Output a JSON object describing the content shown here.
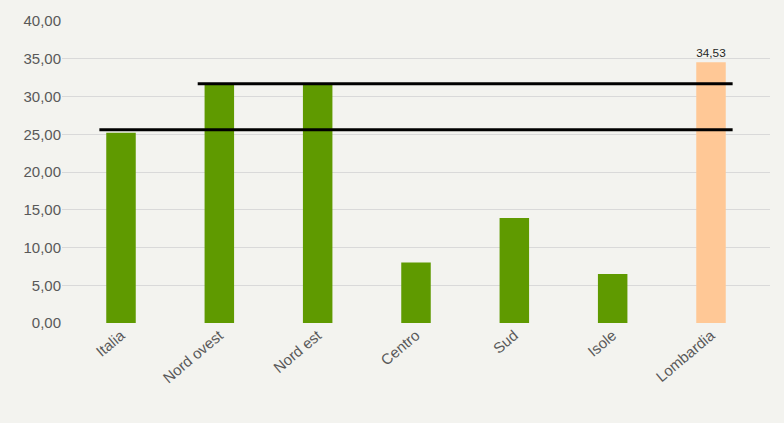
{
  "chart_data": {
    "type": "bar",
    "categories": [
      "Italia",
      "Nord ovest",
      "Nord est",
      "Centro",
      "Sud",
      "Isole",
      "Lombardia"
    ],
    "values": [
      25.2,
      31.7,
      31.7,
      8.0,
      13.9,
      6.5,
      34.53
    ],
    "value_labels": [
      null,
      null,
      null,
      null,
      null,
      null,
      "34,53"
    ],
    "data_labels": true,
    "colors": [
      "#5f9a00",
      "#5f9a00",
      "#5f9a00",
      "#5f9a00",
      "#5f9a00",
      "#5f9a00",
      "#ffc896"
    ],
    "ylim": [
      0,
      40
    ],
    "yticks": [
      {
        "value": 0,
        "label": "0,00"
      },
      {
        "value": 5,
        "label": "5,00"
      },
      {
        "value": 10,
        "label": "10,00"
      },
      {
        "value": 15,
        "label": "15,00"
      },
      {
        "value": 20,
        "label": "20,00"
      },
      {
        "value": 25,
        "label": "25,00"
      },
      {
        "value": 30,
        "label": "30,00"
      },
      {
        "value": 35,
        "label": "35,00"
      },
      {
        "value": 40,
        "label": "40,00"
      }
    ],
    "grid": true,
    "reference_lines": [
      {
        "value": 25.6,
        "start": "Italia"
      },
      {
        "value": 31.7,
        "start": "Nord ovest"
      }
    ]
  }
}
